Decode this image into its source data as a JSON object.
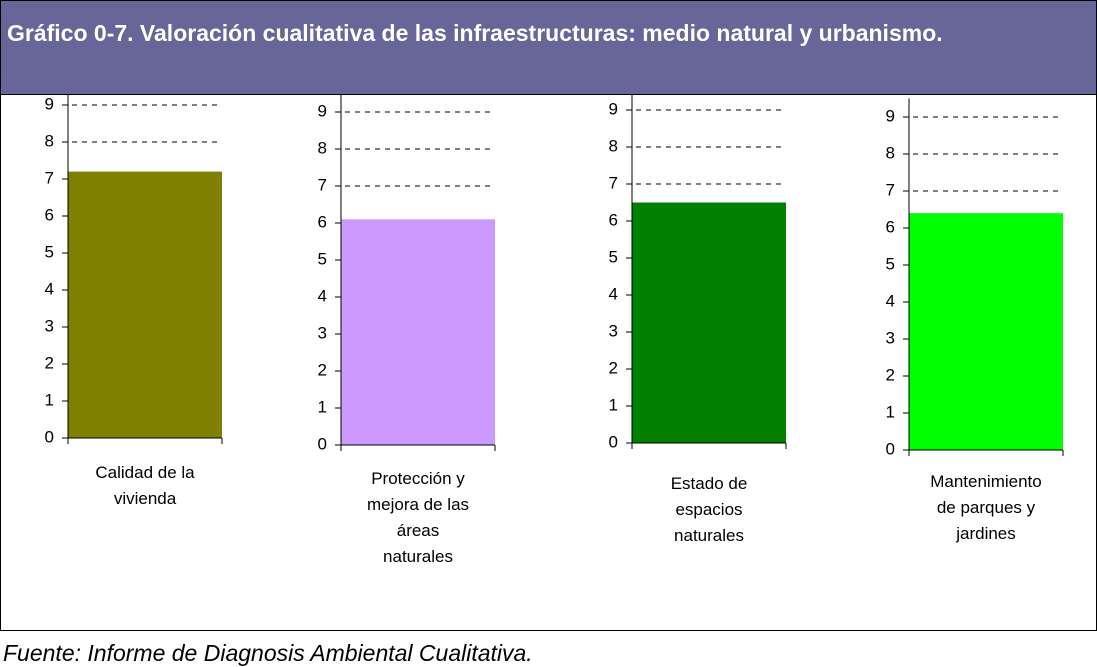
{
  "title": "Gráfico 0-7. Valoración cualitativa de las infraestructuras: medio natural y urbanismo.",
  "source": "Fuente: Informe de Diagnosis Ambiental Cualitativa.",
  "chart_data": [
    {
      "type": "bar",
      "categories": [
        "Calidad de la\nvivienda"
      ],
      "values": [
        7.2
      ],
      "color": "#808000",
      "ylim": [
        0,
        9.5
      ],
      "yticks": [
        0,
        1,
        2,
        3,
        4,
        5,
        6,
        7,
        8,
        9
      ],
      "grid": true
    },
    {
      "type": "bar",
      "categories": [
        "Protección y\nmejora de las\náreas\nnaturales"
      ],
      "values": [
        6.1
      ],
      "color": "#cc99ff",
      "ylim": [
        0,
        9.5
      ],
      "yticks": [
        0,
        1,
        2,
        3,
        4,
        5,
        6,
        7,
        8,
        9
      ],
      "grid": true
    },
    {
      "type": "bar",
      "categories": [
        "Estado de\nespacios\nnaturales"
      ],
      "values": [
        6.5
      ],
      "color": "#008000",
      "ylim": [
        0,
        9.5
      ],
      "yticks": [
        0,
        1,
        2,
        3,
        4,
        5,
        6,
        7,
        8,
        9
      ],
      "grid": true
    },
    {
      "type": "bar",
      "categories": [
        "Mantenimiento\nde parques y\njardines"
      ],
      "values": [
        6.4
      ],
      "color": "#00ff00",
      "ylim": [
        0,
        9.5
      ],
      "yticks": [
        0,
        1,
        2,
        3,
        4,
        5,
        6,
        7,
        8,
        9
      ],
      "grid": true
    }
  ]
}
